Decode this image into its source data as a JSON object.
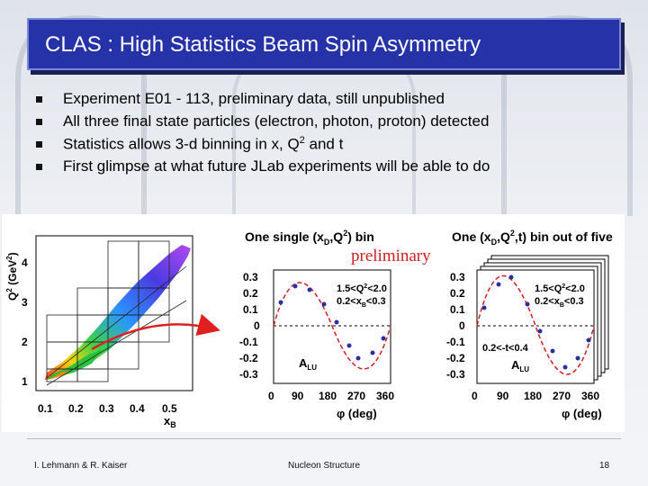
{
  "slide": {
    "title": "CLAS : High Statistics Beam Spin Asymmetry",
    "bullets": [
      {
        "text": "Experiment E01 - 113, preliminary data, still unpublished"
      },
      {
        "text": "All three final state particles (electron, photon, proton) detected"
      },
      {
        "pre": "Statistics allows 3-d binning in x, Q",
        "sup": "2",
        "post": " and t"
      },
      {
        "text": "First glimpse at what future JLab experiments will be able to do"
      }
    ],
    "footer": {
      "left": "I. Lehmann & R. Kaiser",
      "center": "Nucleon Structure",
      "page": "18"
    }
  },
  "colors": {
    "title_bg": "#2633a8",
    "fit_curve": "#d11f1f",
    "data_points": "#2a2fa0",
    "preliminary_text": "#d11f1f",
    "arrow": "#e02020"
  },
  "figure": {
    "preliminary_label": "preliminary",
    "kinematic_plot": {
      "ylabel_main": "Q",
      "ylabel_sup": "2",
      "ylabel_unit": "(GeV",
      "ylabel_unit_sup": "2",
      "ylabel_close": ")",
      "xlabel_main": "x",
      "xlabel_sub": "B",
      "x_ticks": [
        "0.1",
        "0.2",
        "0.3",
        "0.4",
        "0.5"
      ],
      "y_ticks": [
        "1",
        "2",
        "3",
        "4"
      ]
    },
    "panel_left": {
      "title_pre": "One single (x",
      "title_sub1": "D",
      "title_mid": ",Q",
      "title_sup": "2",
      "title_post": ") bin",
      "bin_q2": "1.5<Q",
      "bin_q2_sup": "2",
      "bin_q2_post": "<2.0",
      "bin_x": "0.2<x",
      "bin_x_sub": "B",
      "bin_x_post": "<0.3",
      "alu_main": "A",
      "alu_sub": "LU",
      "y_ticks": [
        "0.3",
        "0.2",
        "0.1",
        "0",
        "-0.1",
        "-0.2",
        "-0.3"
      ],
      "x_ticks": [
        "0",
        "90",
        "180",
        "270",
        "360"
      ],
      "xlabel": "φ (deg)"
    },
    "panel_right": {
      "title_pre": "One (x",
      "title_sub1": "D",
      "title_mid": ",Q",
      "title_sup": "2",
      "title_post": ",t) bin out of five",
      "bin_q2": "1.5<Q",
      "bin_q2_sup": "2",
      "bin_q2_post": "<2.0",
      "bin_x": "0.2<x",
      "bin_x_sub": "B",
      "bin_x_post": "<0.3",
      "bin_t": "0.2<-t<0.4",
      "alu_main": "A",
      "alu_sub": "LU",
      "y_ticks": [
        "0.3",
        "0.2",
        "0.1",
        "0",
        "-0.1",
        "-0.2",
        "-0.3"
      ],
      "x_ticks": [
        "0",
        "90",
        "180",
        "270",
        "360"
      ],
      "xlabel": "φ (deg)"
    }
  }
}
